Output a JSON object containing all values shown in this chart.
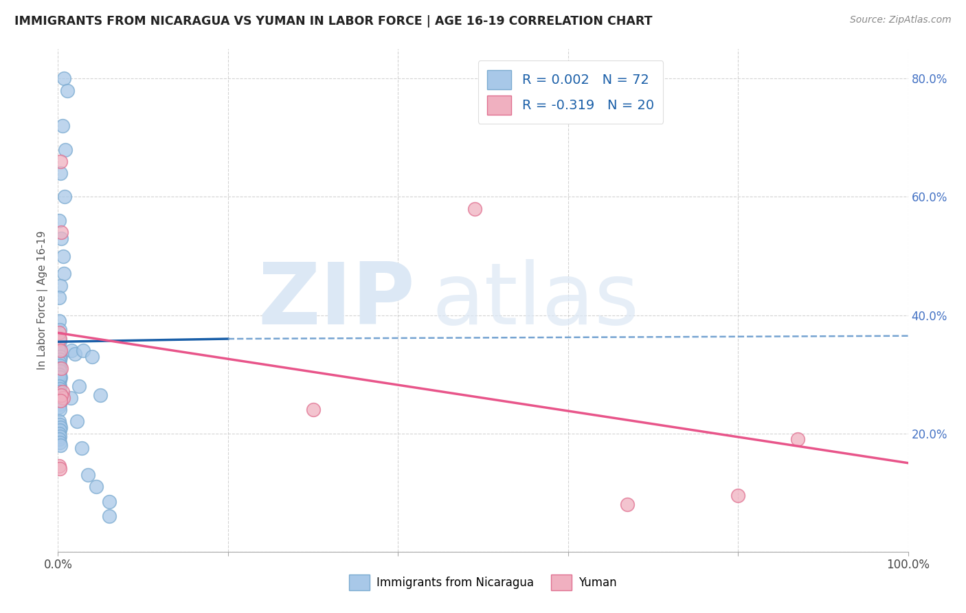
{
  "title": "IMMIGRANTS FROM NICARAGUA VS YUMAN IN LABOR FORCE | AGE 16-19 CORRELATION CHART",
  "source": "Source: ZipAtlas.com",
  "ylabel": "In Labor Force | Age 16-19",
  "xlim": [
    0.0,
    1.0
  ],
  "ylim": [
    0.0,
    0.85
  ],
  "xticks": [
    0.0,
    0.2,
    0.4,
    0.6,
    0.8,
    1.0
  ],
  "yticks": [
    0.0,
    0.2,
    0.4,
    0.6,
    0.8
  ],
  "xtick_labels": [
    "0.0%",
    "",
    "",
    "",
    "",
    "100.0%"
  ],
  "ytick_labels_right": [
    "",
    "20.0%",
    "40.0%",
    "60.0%",
    "80.0%"
  ],
  "background_color": "#ffffff",
  "grid_color": "#c8c8c8",
  "nicaragua_color": "#a8c8e8",
  "nicaragua_edge": "#7aaad0",
  "yuman_color": "#f0b0c0",
  "yuman_edge": "#e07090",
  "nicaragua_line_color": "#1a5fa8",
  "yuman_line_color": "#e8558a",
  "nicaragua_x": [
    0.007,
    0.011,
    0.005,
    0.009,
    0.003,
    0.008,
    0.001,
    0.004,
    0.006,
    0.007,
    0.003,
    0.001,
    0.001,
    0.002,
    0.001,
    0.002,
    0.001,
    0.002,
    0.003,
    0.001,
    0.002,
    0.001,
    0.002,
    0.001,
    0.002,
    0.001,
    0.003,
    0.002,
    0.001,
    0.002,
    0.001,
    0.003,
    0.002,
    0.001,
    0.002,
    0.001,
    0.002,
    0.001,
    0.002,
    0.001,
    0.002,
    0.001,
    0.002,
    0.003,
    0.001,
    0.002,
    0.001,
    0.002,
    0.001,
    0.002,
    0.003,
    0.002,
    0.001,
    0.002,
    0.001,
    0.002,
    0.003,
    0.016,
    0.02,
    0.025,
    0.03,
    0.04,
    0.05,
    0.06,
    0.015,
    0.022,
    0.028,
    0.035,
    0.045,
    0.06
  ],
  "nicaragua_y": [
    0.8,
    0.78,
    0.72,
    0.68,
    0.64,
    0.6,
    0.56,
    0.53,
    0.5,
    0.47,
    0.45,
    0.43,
    0.39,
    0.375,
    0.36,
    0.355,
    0.345,
    0.34,
    0.335,
    0.33,
    0.325,
    0.32,
    0.315,
    0.31,
    0.305,
    0.3,
    0.295,
    0.29,
    0.285,
    0.28,
    0.34,
    0.33,
    0.325,
    0.32,
    0.315,
    0.31,
    0.305,
    0.3,
    0.295,
    0.28,
    0.275,
    0.27,
    0.265,
    0.26,
    0.255,
    0.25,
    0.245,
    0.24,
    0.22,
    0.215,
    0.21,
    0.205,
    0.2,
    0.195,
    0.19,
    0.185,
    0.18,
    0.34,
    0.335,
    0.28,
    0.34,
    0.33,
    0.265,
    0.085,
    0.26,
    0.22,
    0.175,
    0.13,
    0.11,
    0.06
  ],
  "yuman_x": [
    0.001,
    0.002,
    0.003,
    0.004,
    0.003,
    0.004,
    0.005,
    0.006,
    0.001,
    0.002,
    0.004,
    0.003,
    0.3,
    0.49,
    0.67,
    0.8,
    0.87
  ],
  "yuman_y": [
    0.37,
    0.36,
    0.66,
    0.54,
    0.34,
    0.31,
    0.27,
    0.26,
    0.145,
    0.14,
    0.265,
    0.255,
    0.24,
    0.58,
    0.08,
    0.095,
    0.19
  ],
  "nic_line_x": [
    0.0,
    0.2,
    0.2,
    1.0
  ],
  "nic_line_y_solid_start": 0.355,
  "nic_line_y_solid_end": 0.36,
  "nic_line_y_dash_start": 0.36,
  "nic_line_y_dash_end": 0.365,
  "yum_line_x0": 0.0,
  "yum_line_y0": 0.37,
  "yum_line_x1": 1.0,
  "yum_line_y1": 0.15
}
